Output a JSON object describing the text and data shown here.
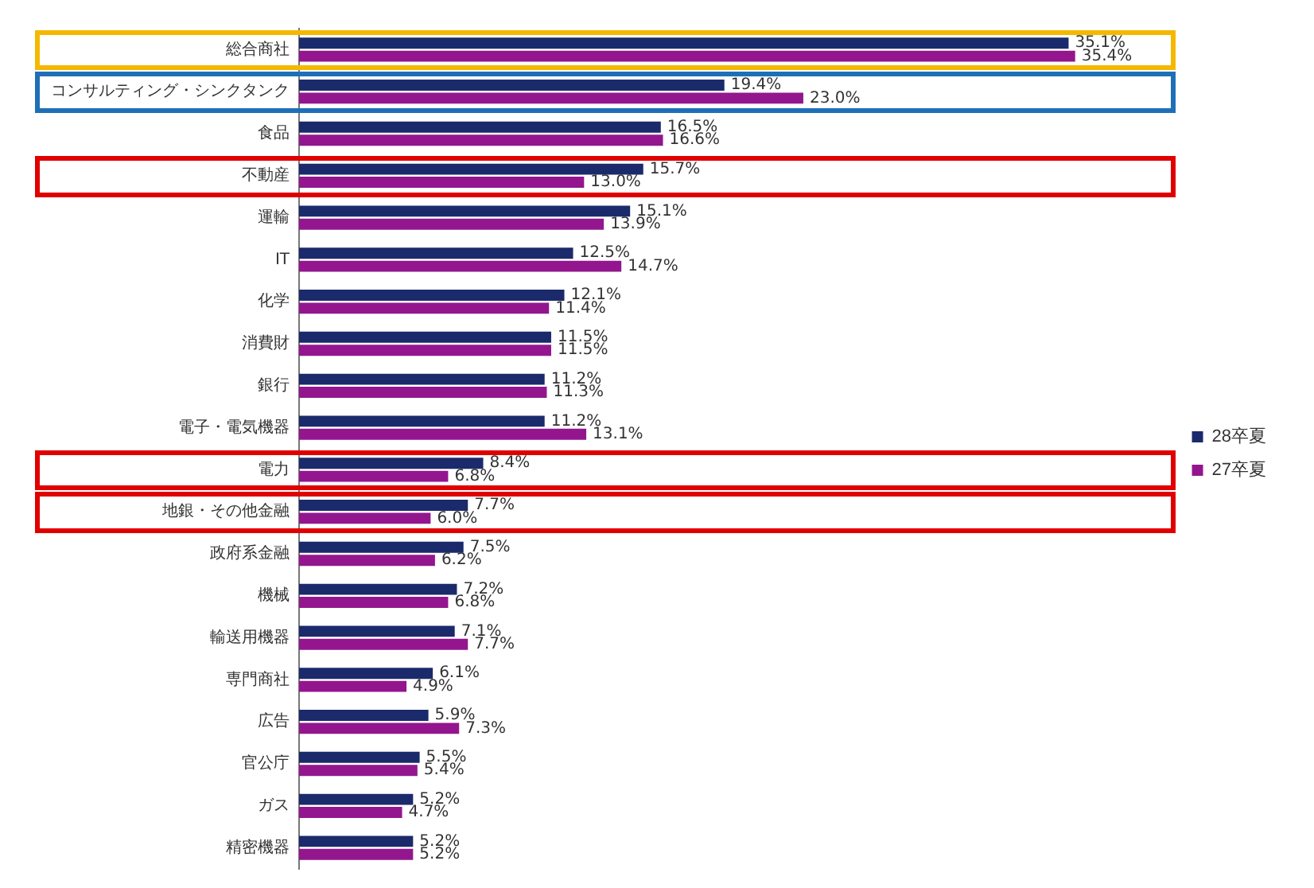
{
  "chart_data": {
    "type": "bar",
    "orientation": "horizontal",
    "categories": [
      "総合商社",
      "コンサルティング・シンクタンク",
      "食品",
      "不動産",
      "運輸",
      "IT",
      "化学",
      "消費財",
      "銀行",
      "電子・電気機器",
      "電力",
      "地銀・その他金融",
      "政府系金融",
      "機械",
      "輸送用機器",
      "専門商社",
      "広告",
      "官公庁",
      "ガス",
      "精密機器"
    ],
    "series": [
      {
        "name": "28卒夏",
        "color": "#1b2a6b",
        "values": [
          35.1,
          19.4,
          16.5,
          15.7,
          15.1,
          12.5,
          12.1,
          11.5,
          11.2,
          11.2,
          8.4,
          7.7,
          7.5,
          7.2,
          7.1,
          6.1,
          5.9,
          5.5,
          5.2,
          5.2
        ],
        "value_labels": [
          "35.1%",
          "19.4%",
          "16.5%",
          "15.7%",
          "15.1%",
          "12.5%",
          "12.1%",
          "11.5%",
          "11.2%",
          "11.2%",
          "8.4%",
          "7.7%",
          "7.5%",
          "7.2%",
          "7.1%",
          "6.1%",
          "5.9%",
          "5.5%",
          "5.2%",
          "5.2%"
        ]
      },
      {
        "name": "27卒夏",
        "color": "#93168f",
        "values": [
          35.4,
          23.0,
          16.6,
          13.0,
          13.9,
          14.7,
          11.4,
          11.5,
          11.3,
          13.1,
          6.8,
          6.0,
          6.2,
          6.8,
          7.7,
          4.9,
          7.3,
          5.4,
          4.7,
          5.2
        ],
        "value_labels": [
          "35.4%",
          "23.0%",
          "16.6%",
          "13.0%",
          "13.9%",
          "14.7%",
          "11.4%",
          "11.5%",
          "11.3%",
          "13.1%",
          "6.8%",
          "6.0%",
          "6.2%",
          "6.8%",
          "7.7%",
          "4.9%",
          "7.3%",
          "5.4%",
          "4.7%",
          "5.2%"
        ]
      }
    ],
    "tick_labels": "y",
    "grid": false,
    "legend": "right"
  }
}
